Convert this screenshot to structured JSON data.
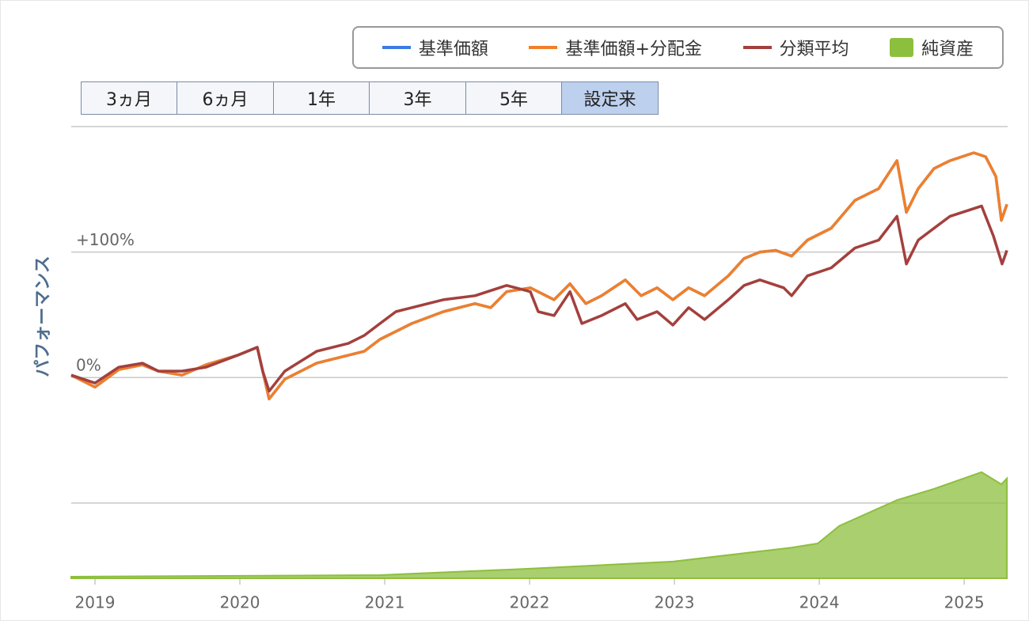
{
  "chart_data": {
    "type": "line",
    "y_label": "パフォーマンス",
    "buttons": [
      "3ヵ月",
      "6ヵ月",
      "1年",
      "3年",
      "5年",
      "設定来"
    ],
    "active_button": 5,
    "xlim": [
      2018.836,
      2025.3
    ],
    "xticks": [
      2019,
      2020,
      2021,
      2022,
      2023,
      2024,
      2025
    ],
    "ylim": [
      -160,
      200
    ],
    "yticks": [
      {
        "value": 0,
        "label": "0%"
      },
      {
        "value": 100,
        "label": "+100%"
      }
    ],
    "gridlines": [
      200,
      -100
    ],
    "y2lim": [
      0,
      100
    ],
    "series": [
      {
        "name": "基準価額",
        "color": "#3b7be3",
        "kind": "line",
        "x": [
          2018.836,
          2019,
          2019.164,
          2019.328,
          2019.437,
          2019.601,
          2019.765,
          2019.984,
          2020.12,
          2020.158,
          2020.202,
          2020.311,
          2020.53,
          2020.749,
          2020.858,
          2020.967,
          2021.186,
          2021.404,
          2021.623,
          2021.732,
          2021.842,
          2022.005,
          2022.169,
          2022.279,
          2022.388,
          2022.497,
          2022.661,
          2022.77,
          2022.88,
          2022.989,
          2023.098,
          2023.208,
          2023.372,
          2023.481,
          2023.59,
          2023.699,
          2023.809,
          2023.918,
          2024.082,
          2024.246,
          2024.41,
          2024.536,
          2024.601,
          2024.683,
          2024.792,
          2024.902,
          2025.066,
          2025.148,
          2025.219,
          2025.257,
          2025.295
        ],
        "values": [
          1.9,
          -7.6,
          6.3,
          10.1,
          5.1,
          1.9,
          10.1,
          17.7,
          24.1,
          5.1,
          -17.1,
          -1.3,
          11.4,
          17.7,
          20.9,
          30.4,
          43.0,
          52.5,
          58.9,
          55.7,
          68.4,
          71.5,
          62.0,
          74.7,
          58.9,
          65.2,
          77.8,
          65.2,
          71.5,
          62.0,
          71.5,
          65.2,
          81.0,
          94.9,
          100,
          101.3,
          96.8,
          109.5,
          119,
          141.2,
          150.6,
          172.8,
          131.7,
          150.6,
          166.5,
          172.8,
          179.1,
          176,
          160.1,
          125.3,
          138
        ]
      },
      {
        "name": "基準価額+分配金",
        "color": "#f07f2a",
        "kind": "line",
        "x": [
          2018.836,
          2019,
          2019.164,
          2019.328,
          2019.437,
          2019.601,
          2019.765,
          2019.984,
          2020.12,
          2020.158,
          2020.202,
          2020.311,
          2020.53,
          2020.749,
          2020.858,
          2020.967,
          2021.186,
          2021.404,
          2021.623,
          2021.732,
          2021.842,
          2022.005,
          2022.169,
          2022.279,
          2022.388,
          2022.497,
          2022.661,
          2022.77,
          2022.88,
          2022.989,
          2023.098,
          2023.208,
          2023.372,
          2023.481,
          2023.59,
          2023.699,
          2023.809,
          2023.918,
          2024.082,
          2024.246,
          2024.41,
          2024.536,
          2024.601,
          2024.683,
          2024.792,
          2024.902,
          2025.066,
          2025.148,
          2025.219,
          2025.257,
          2025.295
        ],
        "values": [
          1.9,
          -7.6,
          6.3,
          10.1,
          5.1,
          1.9,
          10.1,
          17.7,
          24.1,
          5.1,
          -17.1,
          -1.3,
          11.4,
          17.7,
          20.9,
          30.4,
          43.0,
          52.5,
          58.9,
          55.7,
          68.4,
          71.5,
          62.0,
          74.7,
          58.9,
          65.2,
          77.8,
          65.2,
          71.5,
          62.0,
          71.5,
          65.2,
          81.0,
          94.9,
          100,
          101.3,
          96.8,
          109.5,
          119,
          141.2,
          150.6,
          172.8,
          131.7,
          150.6,
          166.5,
          172.8,
          179.1,
          176,
          160.1,
          125.3,
          138
        ]
      },
      {
        "name": "分類平均",
        "color": "#a3403d",
        "kind": "line",
        "x": [
          2018.836,
          2019,
          2019.164,
          2019.328,
          2019.437,
          2019.601,
          2019.765,
          2019.984,
          2020.12,
          2020.158,
          2020.202,
          2020.311,
          2020.53,
          2020.749,
          2020.858,
          2020.967,
          2021.077,
          2021.186,
          2021.404,
          2021.623,
          2021.842,
          2022.005,
          2022.06,
          2022.169,
          2022.279,
          2022.361,
          2022.497,
          2022.661,
          2022.743,
          2022.88,
          2022.989,
          2023.098,
          2023.208,
          2023.372,
          2023.481,
          2023.59,
          2023.754,
          2023.809,
          2023.918,
          2024.082,
          2024.246,
          2024.41,
          2024.536,
          2024.601,
          2024.683,
          2024.792,
          2024.902,
          2025.12,
          2025.202,
          2025.262,
          2025.295
        ],
        "values": [
          1.9,
          -4.4,
          8.2,
          11.4,
          5.1,
          5.1,
          8.2,
          17.7,
          24.1,
          5.1,
          -10.8,
          5.1,
          20.9,
          27.2,
          33.5,
          43.0,
          52.5,
          55.7,
          62.0,
          65.2,
          73.4,
          68.4,
          52.5,
          49.4,
          68.4,
          43.0,
          49.4,
          58.9,
          46.2,
          52.5,
          41.8,
          55.7,
          46.2,
          62.0,
          73.4,
          77.8,
          71.5,
          65.2,
          81.0,
          87.4,
          103.2,
          109.5,
          128.5,
          90.5,
          109.5,
          119.0,
          128.5,
          136.7,
          112.7,
          90.5,
          101.3
        ]
      },
      {
        "name": "純資産",
        "color": "#8dbf3e",
        "kind": "area",
        "axis": "y2",
        "x": [
          2018.836,
          2020.967,
          2021.984,
          2022.989,
          2023.809,
          2023.989,
          2024.137,
          2024.536,
          2024.792,
          2025.12,
          2025.257,
          2025.295
        ],
        "values": [
          0.35,
          0.7,
          2.1,
          3.7,
          6.8,
          7.7,
          11.6,
          17.3,
          19.8,
          23.5,
          20.8,
          22.1
        ]
      }
    ]
  }
}
